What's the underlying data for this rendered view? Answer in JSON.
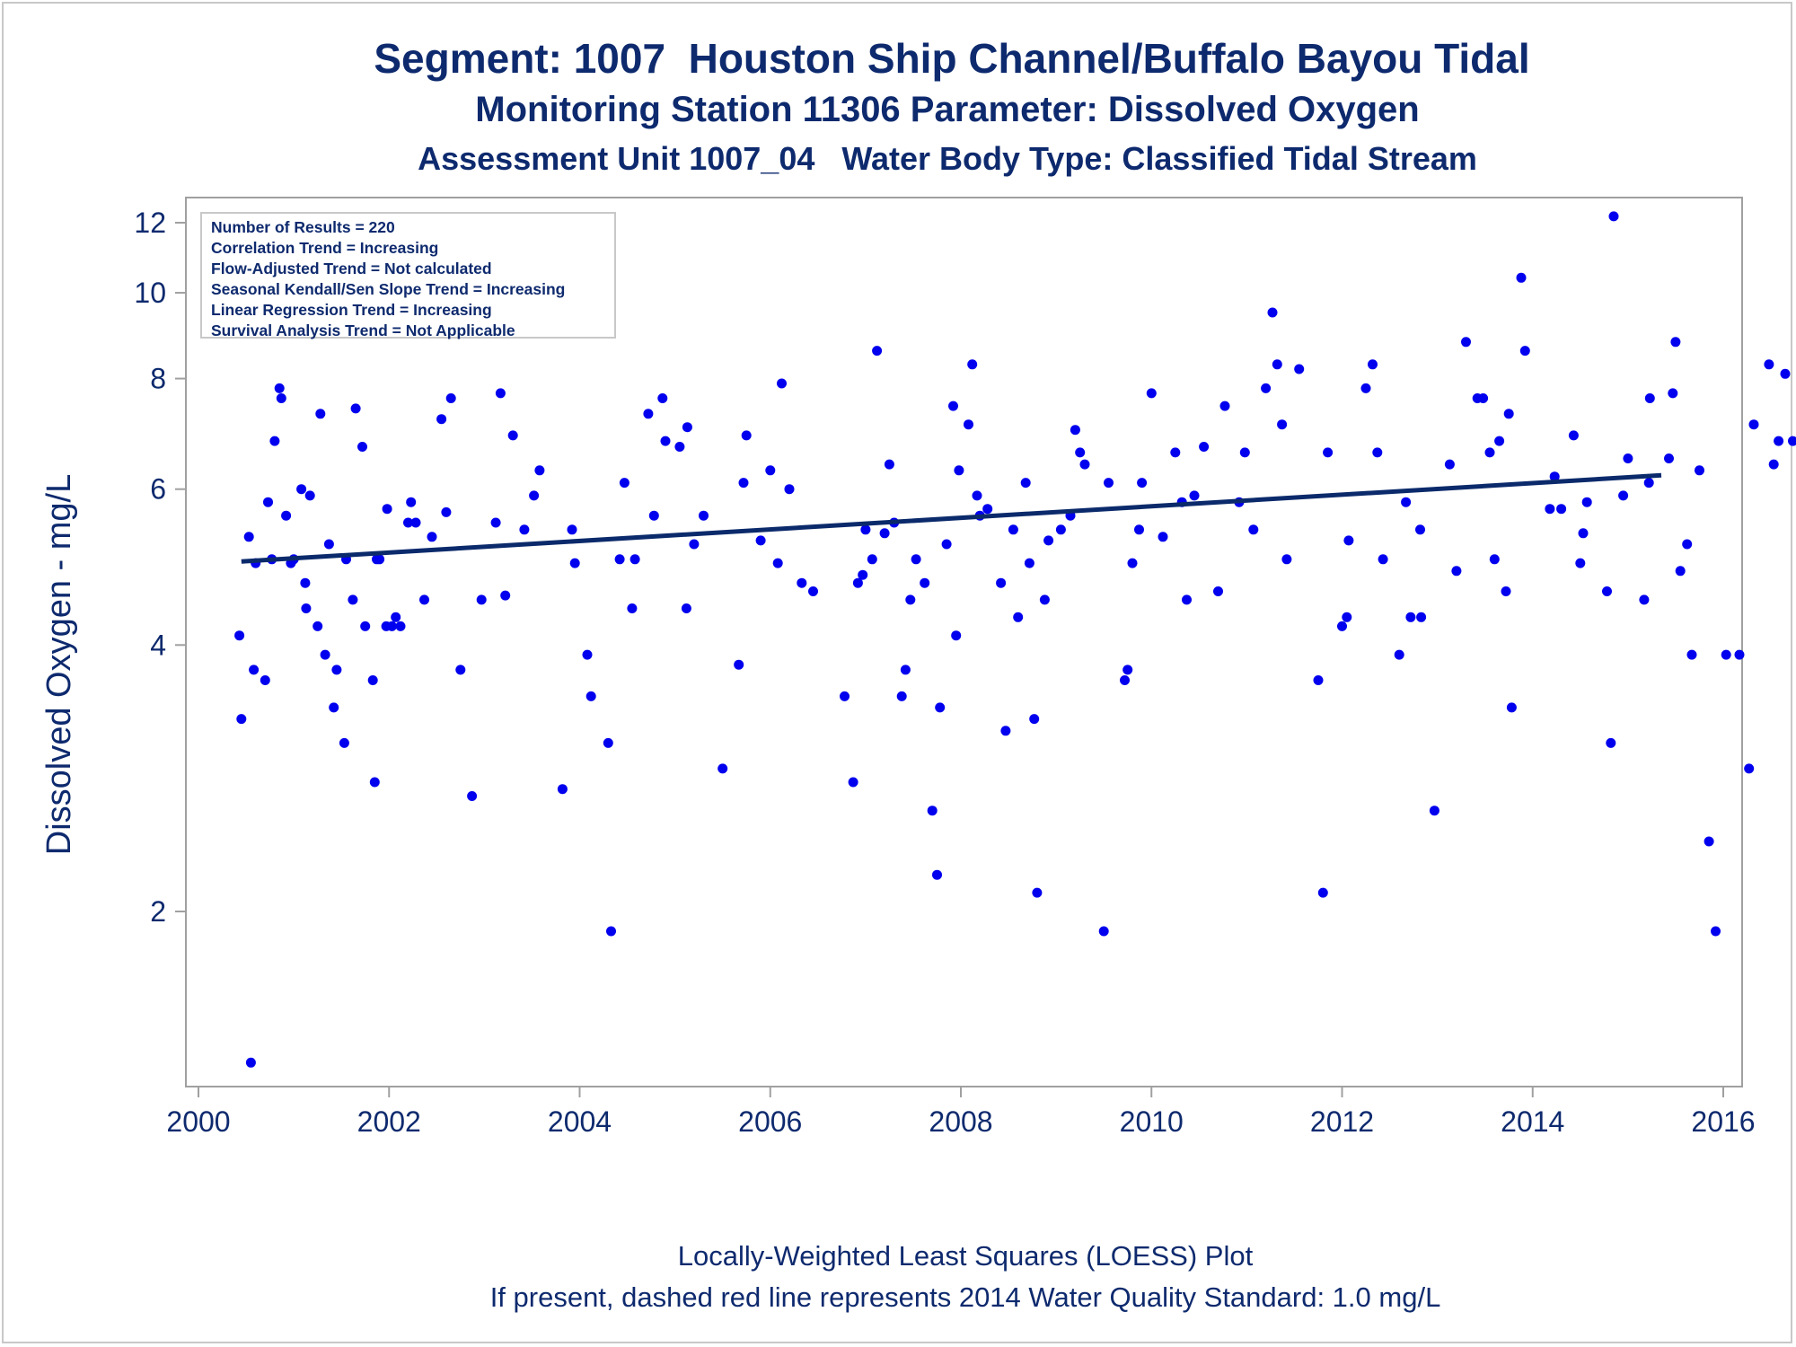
{
  "titles": [
    "Segment: 1007  Houston Ship Channel/Buffalo Bayou Tidal",
    "Monitoring Station 11306 Parameter: Dissolved Oxygen",
    "Assessment Unit 1007_04   Water Body Type: Classified Tidal Stream"
  ],
  "stats_box": [
    "Number of Results = 220",
    "Correlation Trend = Increasing",
    "Flow-Adjusted Trend = Not calculated",
    "Seasonal Kendall/Sen Slope Trend = Increasing",
    "Linear Regression Trend = Increasing",
    "Survival Analysis Trend = Not Applicable"
  ],
  "footnotes": [
    "Locally-Weighted Least Squares (LOESS) Plot",
    "If present, dashed red line represents 2014 Water Quality Standard: 1.0 mg/L"
  ],
  "colors": {
    "points": "#0000ee",
    "trend_line": "#0b2a6b",
    "text": "#0e2a6e",
    "frame": "#a0a0a0"
  },
  "chart_data": {
    "type": "scatter",
    "ylabel": "Dissolved Oxygen - mg/L",
    "xlabel": "",
    "y_scale": "log",
    "xlim": [
      2000,
      2016
    ],
    "ylim": [
      1.3,
      12.5
    ],
    "x_ticks": [
      2000,
      2002,
      2004,
      2006,
      2008,
      2010,
      2012,
      2014,
      2016
    ],
    "y_ticks": [
      2,
      4,
      6,
      8,
      10,
      12
    ],
    "grid": false,
    "legend": "none",
    "trend": {
      "name": "LOESS",
      "x": [
        2000.45,
        2015.35
      ],
      "y": [
        4.97,
        6.22
      ]
    },
    "points": [
      [
        2000.43,
        4.1
      ],
      [
        2000.45,
        3.3
      ],
      [
        2000.53,
        5.3
      ],
      [
        2000.55,
        1.35
      ],
      [
        2000.58,
        3.75
      ],
      [
        2000.6,
        4.95
      ],
      [
        2000.7,
        3.65
      ],
      [
        2000.73,
        5.8
      ],
      [
        2000.77,
        5.0
      ],
      [
        2000.8,
        6.8
      ],
      [
        2000.85,
        7.8
      ],
      [
        2000.87,
        7.6
      ],
      [
        2000.92,
        5.6
      ],
      [
        2000.97,
        4.95
      ],
      [
        2001.0,
        5.0
      ],
      [
        2001.02,
        9.8
      ],
      [
        2001.08,
        6.0
      ],
      [
        2001.12,
        4.7
      ],
      [
        2001.13,
        4.4
      ],
      [
        2001.17,
        5.9
      ],
      [
        2001.25,
        4.2
      ],
      [
        2001.28,
        7.3
      ],
      [
        2001.33,
        3.9
      ],
      [
        2001.37,
        5.2
      ],
      [
        2001.42,
        3.4
      ],
      [
        2001.45,
        3.75
      ],
      [
        2001.53,
        3.1
      ],
      [
        2001.55,
        5.0
      ],
      [
        2001.62,
        4.5
      ],
      [
        2001.65,
        7.4
      ],
      [
        2001.72,
        6.7
      ],
      [
        2001.75,
        4.2
      ],
      [
        2001.83,
        3.65
      ],
      [
        2001.85,
        2.8
      ],
      [
        2001.87,
        5.0
      ],
      [
        2001.9,
        5.0
      ],
      [
        2001.97,
        4.2
      ],
      [
        2001.98,
        5.7
      ],
      [
        2002.03,
        4.2
      ],
      [
        2002.07,
        4.3
      ],
      [
        2002.12,
        4.2
      ],
      [
        2002.2,
        5.5
      ],
      [
        2002.23,
        5.8
      ],
      [
        2002.28,
        5.5
      ],
      [
        2002.37,
        4.5
      ],
      [
        2002.45,
        5.3
      ],
      [
        2002.55,
        7.2
      ],
      [
        2002.6,
        5.65
      ],
      [
        2002.65,
        7.6
      ],
      [
        2002.75,
        3.75
      ],
      [
        2002.87,
        2.7
      ],
      [
        2002.97,
        4.5
      ],
      [
        2003.12,
        5.5
      ],
      [
        2003.17,
        7.7
      ],
      [
        2003.22,
        4.55
      ],
      [
        2003.3,
        6.9
      ],
      [
        2003.42,
        5.4
      ],
      [
        2003.52,
        5.9
      ],
      [
        2003.58,
        6.3
      ],
      [
        2003.82,
        2.75
      ],
      [
        2003.92,
        5.4
      ],
      [
        2003.95,
        4.95
      ],
      [
        2004.08,
        3.9
      ],
      [
        2004.12,
        3.5
      ],
      [
        2004.3,
        3.1
      ],
      [
        2004.33,
        1.9
      ],
      [
        2004.42,
        5.0
      ],
      [
        2004.47,
        6.1
      ],
      [
        2004.55,
        4.4
      ],
      [
        2004.58,
        5.0
      ],
      [
        2004.72,
        7.3
      ],
      [
        2004.78,
        5.6
      ],
      [
        2004.87,
        7.6
      ],
      [
        2004.9,
        6.8
      ],
      [
        2005.05,
        6.7
      ],
      [
        2005.12,
        4.4
      ],
      [
        2005.13,
        7.05
      ],
      [
        2005.2,
        5.2
      ],
      [
        2005.3,
        5.6
      ],
      [
        2005.5,
        2.9
      ],
      [
        2005.67,
        3.8
      ],
      [
        2005.72,
        6.1
      ],
      [
        2005.75,
        6.9
      ],
      [
        2005.9,
        5.25
      ],
      [
        2006.0,
        6.3
      ],
      [
        2006.08,
        4.95
      ],
      [
        2006.12,
        7.9
      ],
      [
        2006.2,
        6.0
      ],
      [
        2006.33,
        4.7
      ],
      [
        2006.45,
        4.6
      ],
      [
        2006.78,
        3.5
      ],
      [
        2006.87,
        2.8
      ],
      [
        2006.92,
        4.7
      ],
      [
        2006.97,
        4.8
      ],
      [
        2007.0,
        5.4
      ],
      [
        2007.07,
        5.0
      ],
      [
        2007.12,
        8.6
      ],
      [
        2007.2,
        5.35
      ],
      [
        2007.25,
        6.4
      ],
      [
        2007.3,
        5.5
      ],
      [
        2007.38,
        3.5
      ],
      [
        2007.42,
        3.75
      ],
      [
        2007.47,
        4.5
      ],
      [
        2007.53,
        5.0
      ],
      [
        2007.62,
        4.7
      ],
      [
        2007.7,
        2.6
      ],
      [
        2007.75,
        2.2
      ],
      [
        2007.78,
        3.4
      ],
      [
        2007.85,
        5.2
      ],
      [
        2007.92,
        7.45
      ],
      [
        2007.95,
        4.1
      ],
      [
        2007.98,
        6.3
      ],
      [
        2008.08,
        7.1
      ],
      [
        2008.12,
        8.3
      ],
      [
        2008.17,
        5.9
      ],
      [
        2008.2,
        5.6
      ],
      [
        2008.28,
        5.7
      ],
      [
        2008.42,
        4.7
      ],
      [
        2008.47,
        3.2
      ],
      [
        2008.55,
        5.4
      ],
      [
        2008.6,
        4.3
      ],
      [
        2008.68,
        6.1
      ],
      [
        2008.72,
        4.95
      ],
      [
        2008.77,
        3.3
      ],
      [
        2008.8,
        2.1
      ],
      [
        2008.88,
        4.5
      ],
      [
        2008.92,
        5.25
      ],
      [
        2009.05,
        5.4
      ],
      [
        2009.15,
        5.6
      ],
      [
        2009.2,
        7.0
      ],
      [
        2009.25,
        6.6
      ],
      [
        2009.3,
        6.4
      ],
      [
        2009.5,
        1.9
      ],
      [
        2009.55,
        6.1
      ],
      [
        2009.72,
        3.65
      ],
      [
        2009.75,
        3.75
      ],
      [
        2009.8,
        4.95
      ],
      [
        2009.87,
        5.4
      ],
      [
        2009.9,
        6.1
      ],
      [
        2010.0,
        7.7
      ],
      [
        2010.12,
        5.3
      ],
      [
        2010.25,
        6.6
      ],
      [
        2010.32,
        5.8
      ],
      [
        2010.37,
        4.5
      ],
      [
        2010.45,
        5.9
      ],
      [
        2010.55,
        6.7
      ],
      [
        2010.7,
        4.6
      ],
      [
        2010.77,
        7.45
      ],
      [
        2010.92,
        5.8
      ],
      [
        2010.98,
        6.6
      ],
      [
        2011.07,
        5.4
      ],
      [
        2011.2,
        7.8
      ],
      [
        2011.27,
        9.5
      ],
      [
        2011.32,
        8.3
      ],
      [
        2011.37,
        7.1
      ],
      [
        2011.42,
        5.0
      ],
      [
        2011.55,
        8.2
      ],
      [
        2011.75,
        3.65
      ],
      [
        2011.8,
        2.1
      ],
      [
        2011.85,
        6.6
      ],
      [
        2012.0,
        4.2
      ],
      [
        2012.05,
        4.3
      ],
      [
        2012.07,
        5.25
      ],
      [
        2012.25,
        7.8
      ],
      [
        2012.32,
        8.3
      ],
      [
        2012.37,
        6.6
      ],
      [
        2012.43,
        5.0
      ],
      [
        2012.6,
        3.9
      ],
      [
        2012.67,
        5.8
      ],
      [
        2012.72,
        4.3
      ],
      [
        2012.82,
        5.4
      ],
      [
        2012.83,
        4.3
      ],
      [
        2012.97,
        2.6
      ],
      [
        2013.13,
        6.4
      ],
      [
        2013.2,
        4.85
      ],
      [
        2013.3,
        8.8
      ],
      [
        2013.42,
        7.6
      ],
      [
        2013.48,
        7.6
      ],
      [
        2013.55,
        6.6
      ],
      [
        2013.6,
        5.0
      ],
      [
        2013.65,
        6.8
      ],
      [
        2013.72,
        4.6
      ],
      [
        2013.75,
        7.3
      ],
      [
        2013.78,
        3.4
      ],
      [
        2013.88,
        10.4
      ],
      [
        2013.92,
        8.6
      ],
      [
        2014.18,
        5.7
      ],
      [
        2014.23,
        6.2
      ],
      [
        2014.3,
        5.7
      ],
      [
        2014.43,
        6.9
      ],
      [
        2014.5,
        4.95
      ],
      [
        2014.53,
        5.35
      ],
      [
        2014.57,
        5.8
      ],
      [
        2014.78,
        4.6
      ],
      [
        2014.82,
        3.1
      ],
      [
        2014.85,
        12.2
      ],
      [
        2014.95,
        5.9
      ],
      [
        2015.0,
        6.5
      ],
      [
        2015.17,
        4.5
      ],
      [
        2015.22,
        6.1
      ],
      [
        2015.23,
        7.6
      ],
      [
        2015.43,
        6.5
      ],
      [
        2015.47,
        7.7
      ],
      [
        2015.5,
        8.8
      ],
      [
        2015.55,
        4.85
      ],
      [
        2015.62,
        5.2
      ],
      [
        2015.67,
        3.9
      ],
      [
        2015.75,
        6.3
      ],
      [
        2015.85,
        2.4
      ],
      [
        2015.92,
        1.9
      ],
      [
        2016.03,
        3.9
      ],
      [
        2016.17,
        3.9
      ],
      [
        2016.27,
        2.9
      ],
      [
        2016.32,
        7.1
      ],
      [
        2016.48,
        8.3
      ],
      [
        2016.53,
        6.4
      ],
      [
        2016.58,
        6.8
      ],
      [
        2016.65,
        8.1
      ],
      [
        2016.73,
        6.8
      ],
      [
        2016.85,
        6.2
      ]
    ]
  }
}
